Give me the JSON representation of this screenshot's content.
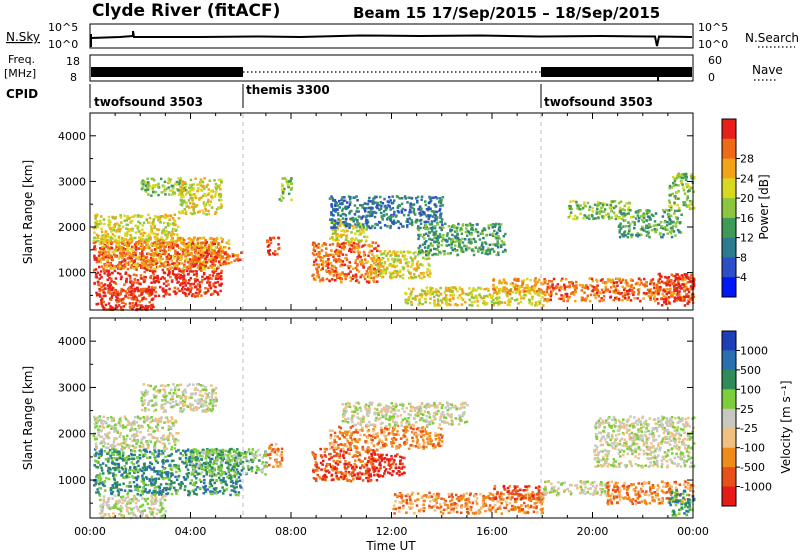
{
  "header": {
    "title": "Clyde River (fitACF)",
    "beam_info": "Beam 15  17/Sep/2015 – 18/Sep/2015"
  },
  "strips": {
    "nsky_label": "N.Sky",
    "nsky_ticks": [
      "10^5",
      "10^0"
    ],
    "nsearch_label": "N.Search",
    "nsearch_ticks": [
      "10^5",
      "10^0"
    ],
    "freq_label_1": "Freq.",
    "freq_label_2": "[MHz]",
    "freq_ticks": [
      "18",
      "8"
    ],
    "nave_label": "Nave",
    "nave_ticks": [
      "60",
      "0"
    ],
    "cpid_label": "CPID",
    "cpid_segments": [
      {
        "name": "twofsound 3503",
        "start_h": 0,
        "end_h": 6
      },
      {
        "name": "themis 3300",
        "start_h": 6,
        "end_h": 18
      },
      {
        "name": "twofsound 3503",
        "start_h": 18,
        "end_h": 24
      }
    ]
  },
  "chart_data": [
    {
      "type": "heatmap",
      "title": "",
      "xlabel": "",
      "ylabel": "Slant Range [km]",
      "xlim": [
        0,
        24
      ],
      "ylim": [
        180,
        4500
      ],
      "y_ticks": [
        1000,
        2000,
        3000,
        4000
      ],
      "colorbar": {
        "label": "Power [dB]",
        "ticks": [
          "4",
          "8",
          "12",
          "16",
          "20",
          "24",
          "28"
        ],
        "colors": [
          "#0018f5",
          "#2a4fc8",
          "#2d7b8f",
          "#3f9a5a",
          "#8cc63f",
          "#d8d81e",
          "#f2a318",
          "#ef6a16",
          "#e8201a"
        ]
      },
      "regions": [
        {
          "x0": 0.1,
          "x1": 5.2,
          "y0": 500,
          "y1": 1700,
          "level": 8
        },
        {
          "x0": 0.2,
          "x1": 2.5,
          "y0": 200,
          "y1": 700,
          "level": 8
        },
        {
          "x0": 0.3,
          "x1": 5.5,
          "y0": 1100,
          "y1": 1800,
          "level": 6
        },
        {
          "x0": 0.1,
          "x1": 3.5,
          "y0": 1700,
          "y1": 2300,
          "level": 5
        },
        {
          "x0": 2.0,
          "x1": 3.8,
          "y0": 2700,
          "y1": 3100,
          "level": 4
        },
        {
          "x0": 3.5,
          "x1": 5.2,
          "y0": 2300,
          "y1": 3100,
          "level": 5
        },
        {
          "x0": 4.0,
          "x1": 6.0,
          "y0": 1250,
          "y1": 1500,
          "level": 7
        },
        {
          "x0": 7.0,
          "x1": 7.5,
          "y0": 1400,
          "y1": 1800,
          "level": 8
        },
        {
          "x0": 7.5,
          "x1": 8.0,
          "y0": 2600,
          "y1": 3100,
          "level": 4
        },
        {
          "x0": 8.8,
          "x1": 11.5,
          "y0": 800,
          "y1": 1700,
          "level": 7
        },
        {
          "x0": 9.5,
          "x1": 11.0,
          "y0": 1700,
          "y1": 2200,
          "level": 5
        },
        {
          "x0": 11.0,
          "x1": 13.5,
          "y0": 900,
          "y1": 1500,
          "level": 5
        },
        {
          "x0": 9.5,
          "x1": 14.0,
          "y0": 2000,
          "y1": 2700,
          "level": 2
        },
        {
          "x0": 13.0,
          "x1": 16.5,
          "y0": 1400,
          "y1": 2100,
          "level": 3
        },
        {
          "x0": 12.5,
          "x1": 18.0,
          "y0": 300,
          "y1": 700,
          "level": 5
        },
        {
          "x0": 16.0,
          "x1": 18.0,
          "y0": 550,
          "y1": 900,
          "level": 6
        },
        {
          "x0": 18.0,
          "x1": 24.0,
          "y0": 400,
          "y1": 900,
          "level": 7
        },
        {
          "x0": 19.0,
          "x1": 21.5,
          "y0": 2200,
          "y1": 2600,
          "level": 4
        },
        {
          "x0": 21.0,
          "x1": 23.5,
          "y0": 1800,
          "y1": 2400,
          "level": 3
        },
        {
          "x0": 22.5,
          "x1": 24.0,
          "y0": 300,
          "y1": 1000,
          "level": 8
        },
        {
          "x0": 23.0,
          "x1": 24.0,
          "y0": 2400,
          "y1": 3200,
          "level": 4
        }
      ]
    },
    {
      "type": "heatmap",
      "title": "",
      "xlabel": "Time UT",
      "ylabel": "Slant Range [km]",
      "xlim": [
        0,
        24
      ],
      "ylim": [
        180,
        4500
      ],
      "x_ticks": [
        "00:00",
        "04:00",
        "08:00",
        "12:00",
        "16:00",
        "20:00",
        "00:00"
      ],
      "y_ticks": [
        1000,
        2000,
        3000,
        4000
      ],
      "colorbar": {
        "label": "Velocity [m s⁻¹]",
        "ticks": [
          "1000",
          "500",
          "100",
          "25",
          "-25",
          "-100",
          "-500",
          "-1000"
        ],
        "colors": [
          "#1c3fb8",
          "#2a6fb0",
          "#2f8c5a",
          "#7ccf3a",
          "#c8c8c0",
          "#f0c080",
          "#f08a18",
          "#e8501a",
          "#e81a1a"
        ]
      },
      "regions": [
        {
          "x0": 0.1,
          "x1": 6.0,
          "y0": 700,
          "y1": 1700,
          "level": 2
        },
        {
          "x0": 0.1,
          "x1": 3.5,
          "y0": 1700,
          "y1": 2400,
          "level": 4
        },
        {
          "x0": 0.3,
          "x1": 3.0,
          "y0": 200,
          "y1": 700,
          "level": 4
        },
        {
          "x0": 2.0,
          "x1": 5.0,
          "y0": 2500,
          "y1": 3100,
          "level": 4
        },
        {
          "x0": 4.0,
          "x1": 7.0,
          "y0": 1150,
          "y1": 1700,
          "level": 3
        },
        {
          "x0": 7.0,
          "x1": 7.6,
          "y0": 1300,
          "y1": 1800,
          "level": 6
        },
        {
          "x0": 8.8,
          "x1": 11.5,
          "y0": 1000,
          "y1": 1700,
          "level": 7
        },
        {
          "x0": 11.0,
          "x1": 12.5,
          "y0": 1100,
          "y1": 1600,
          "level": 8
        },
        {
          "x0": 9.5,
          "x1": 14.0,
          "y0": 1700,
          "y1": 2200,
          "level": 6
        },
        {
          "x0": 10.0,
          "x1": 15.0,
          "y0": 2200,
          "y1": 2700,
          "level": 4
        },
        {
          "x0": 12.0,
          "x1": 18.0,
          "y0": 300,
          "y1": 750,
          "level": 6
        },
        {
          "x0": 16.0,
          "x1": 18.0,
          "y0": 600,
          "y1": 900,
          "level": 7
        },
        {
          "x0": 18.0,
          "x1": 20.5,
          "y0": 700,
          "y1": 1000,
          "level": 4
        },
        {
          "x0": 20.5,
          "x1": 24.0,
          "y0": 500,
          "y1": 1000,
          "level": 6
        },
        {
          "x0": 20.0,
          "x1": 24.0,
          "y0": 1300,
          "y1": 2400,
          "level": 4
        },
        {
          "x0": 23.0,
          "x1": 24.0,
          "y0": 250,
          "y1": 800,
          "level": 2
        }
      ]
    }
  ]
}
